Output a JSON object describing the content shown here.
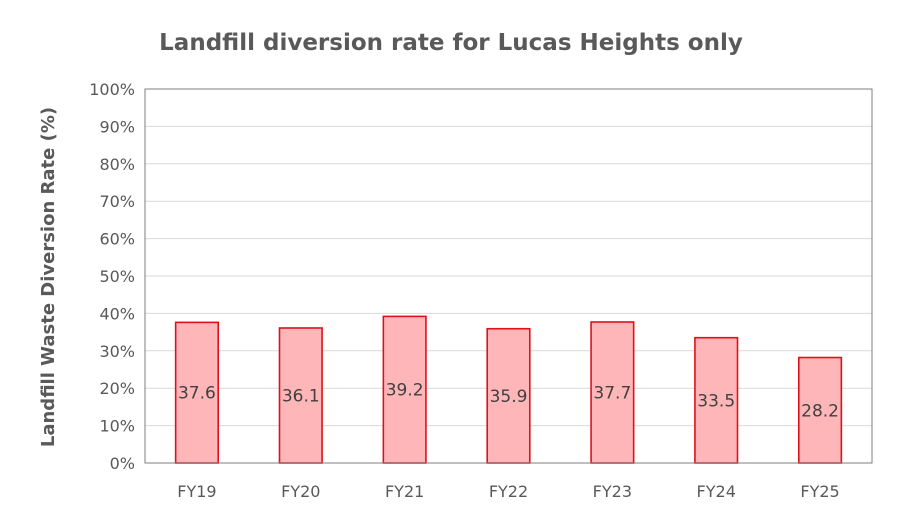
{
  "chart_data": {
    "type": "bar",
    "title": "Landfill diversion rate for Lucas Heights only",
    "xlabel": "",
    "ylabel": "Landfill Waste Diversion Rate (%)",
    "categories": [
      "FY19",
      "FY20",
      "FY21",
      "FY22",
      "FY23",
      "FY24",
      "FY25"
    ],
    "values": [
      37.6,
      36.1,
      39.2,
      35.9,
      37.7,
      33.5,
      28.2
    ],
    "value_labels": [
      "37.6",
      "36.1",
      "39.2",
      "35.9",
      "37.7",
      "33.5",
      "28.2"
    ],
    "ylim": [
      0,
      100
    ],
    "yticks": [
      0,
      10,
      20,
      30,
      40,
      50,
      60,
      70,
      80,
      90,
      100
    ],
    "ytick_labels": [
      "0%",
      "10%",
      "20%",
      "30%",
      "40%",
      "50%",
      "60%",
      "70%",
      "80%",
      "90%",
      "100%"
    ],
    "grid": true,
    "colors": {
      "bar_fill": "#ffb6b9",
      "bar_edge": "#e0101a",
      "text": "#595959"
    }
  }
}
